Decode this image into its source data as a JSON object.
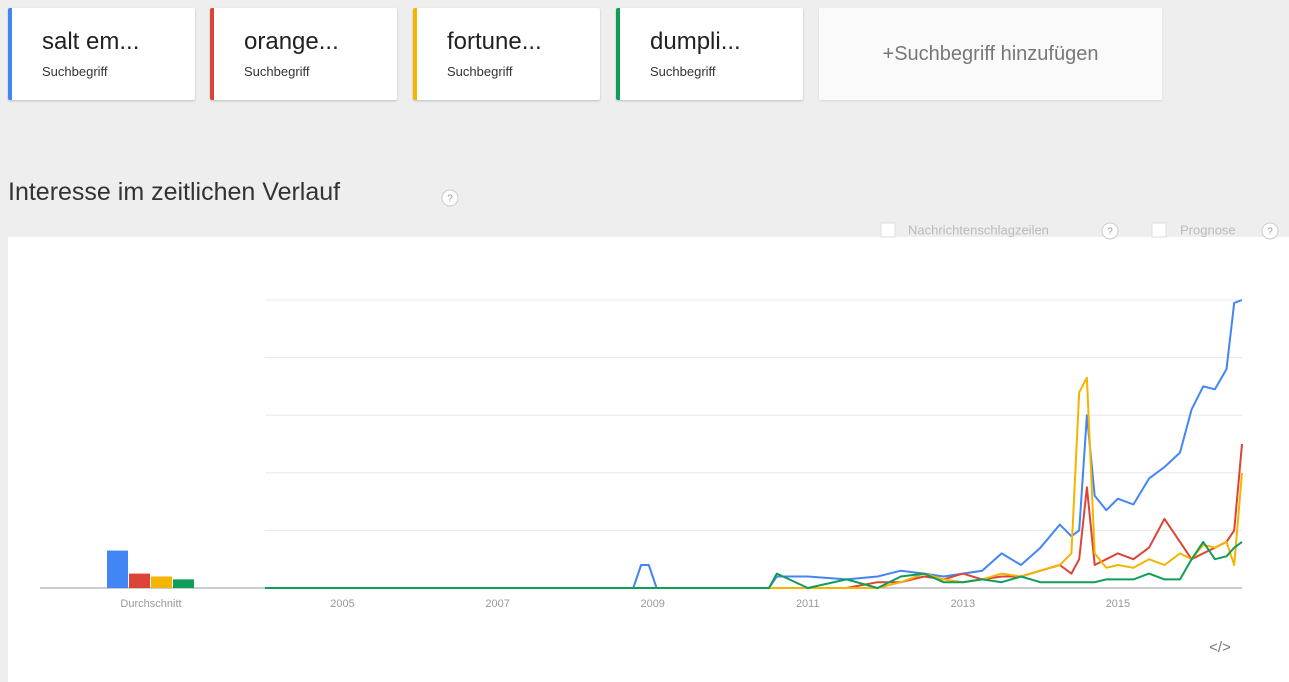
{
  "add_term": "+Suchbegriff hinzufügen",
  "section_title": "Interesse im zeitlichen Verlauf",
  "help_icon": "?",
  "options": [
    "Nachrichtenschlagzeilen",
    "Prognose"
  ],
  "embed_label": "</>",
  "chart_data": {
    "type": "line",
    "average_label": "Durchschnitt",
    "x": [
      2004.0,
      2008.75,
      2008.85,
      2008.95,
      2009.05,
      2010.5,
      2010.6,
      2011.0,
      2011.5,
      2011.9,
      2012.2,
      2012.5,
      2012.75,
      2013.0,
      2013.25,
      2013.5,
      2013.75,
      2014.0,
      2014.25,
      2014.4,
      2014.5,
      2014.6,
      2014.7,
      2014.85,
      2015.0,
      2015.2,
      2015.4,
      2015.6,
      2015.8,
      2015.95,
      2016.1,
      2016.25,
      2016.4,
      2016.5,
      2016.6
    ],
    "series": [
      {
        "name": "salt em...",
        "kind": "Suchbegriff",
        "color": "#4285f4",
        "average": 13,
        "values": [
          0,
          0,
          8,
          8,
          0,
          0,
          4,
          4,
          3,
          4,
          6,
          5,
          4,
          5,
          6,
          12,
          8,
          14,
          22,
          18,
          20,
          60,
          32,
          27,
          31,
          29,
          38,
          42,
          47,
          62,
          70,
          69,
          76,
          99,
          100
        ]
      },
      {
        "name": "orange...",
        "kind": "Suchbegriff",
        "color": "#db4437",
        "average": 5,
        "values": [
          0,
          0,
          0,
          0,
          0,
          0,
          0,
          0,
          0,
          2,
          2,
          4,
          3,
          5,
          3,
          4,
          4,
          6,
          8,
          5,
          10,
          35,
          8,
          10,
          12,
          10,
          14,
          24,
          16,
          10,
          12,
          14,
          16,
          20,
          50
        ]
      },
      {
        "name": "fortune...",
        "kind": "Suchbegriff",
        "color": "#f4b400",
        "average": 4,
        "values": [
          0,
          0,
          0,
          0,
          0,
          0,
          0,
          0,
          0,
          0,
          2,
          5,
          3,
          2,
          3,
          5,
          4,
          6,
          8,
          12,
          68,
          73,
          12,
          7,
          8,
          7,
          10,
          8,
          12,
          10,
          15,
          14,
          16,
          8,
          40
        ]
      },
      {
        "name": "dumpli...",
        "kind": "Suchbegriff",
        "color": "#0f9d58",
        "average": 3,
        "values": [
          0,
          0,
          0,
          0,
          0,
          0,
          5,
          0,
          3,
          0,
          4,
          5,
          2,
          2,
          3,
          2,
          4,
          2,
          2,
          2,
          2,
          2,
          2,
          3,
          3,
          3,
          5,
          3,
          3,
          10,
          16,
          10,
          11,
          14,
          16
        ]
      }
    ],
    "xlim": [
      2004,
      2016.6
    ],
    "xticks": [
      2005,
      2007,
      2009,
      2011,
      2013,
      2015
    ],
    "ylim": [
      0,
      100
    ],
    "yticks": [
      0,
      20,
      40,
      60,
      80,
      100
    ],
    "grid": true
  }
}
